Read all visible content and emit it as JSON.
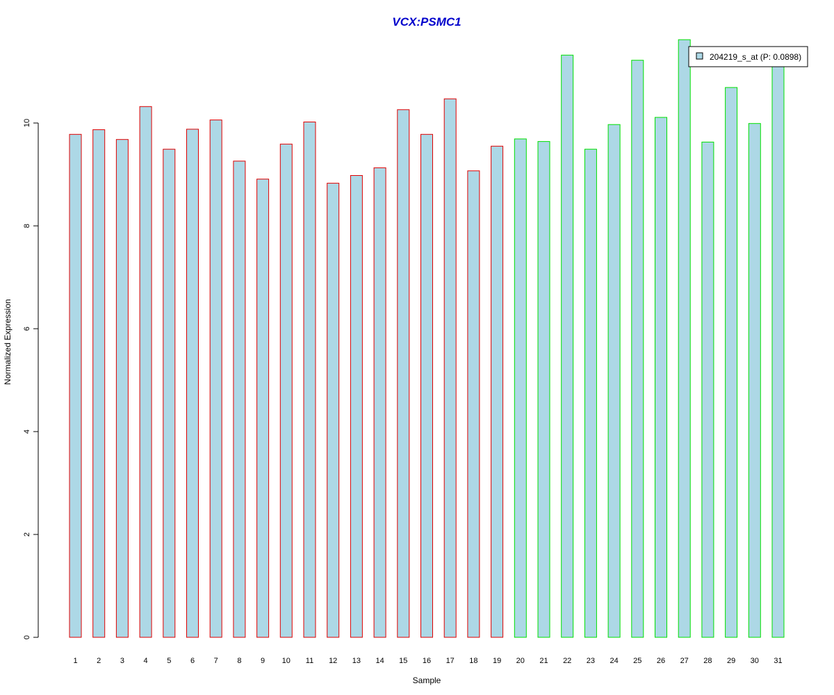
{
  "chart_data": {
    "type": "bar",
    "title": "VCX:PSMC1",
    "xlabel": "Sample",
    "ylabel": "Normalized Expression",
    "categories": [
      "1",
      "2",
      "3",
      "4",
      "5",
      "6",
      "7",
      "8",
      "9",
      "10",
      "11",
      "12",
      "13",
      "14",
      "15",
      "16",
      "17",
      "18",
      "19",
      "20",
      "21",
      "22",
      "23",
      "24",
      "25",
      "26",
      "27",
      "28",
      "29",
      "30",
      "31"
    ],
    "series": [
      {
        "name": "204219_s_at (P: 0.0898)",
        "values": [
          9.78,
          9.87,
          9.68,
          10.32,
          9.49,
          9.88,
          10.06,
          9.26,
          8.91,
          9.59,
          10.02,
          8.83,
          8.98,
          9.13,
          10.26,
          9.78,
          10.47,
          9.07,
          9.55,
          9.69,
          9.64,
          11.32,
          9.49,
          9.97,
          11.22,
          10.11,
          11.62,
          9.63,
          10.69,
          9.99,
          11.25
        ]
      }
    ],
    "groups": [
      {
        "samples": "1-19",
        "border_color": "#e00000"
      },
      {
        "samples": "20-31",
        "border_color": "#00e000"
      }
    ],
    "y_ticks": [
      "0",
      "2",
      "4",
      "6",
      "8",
      "10"
    ],
    "ylim": [
      0,
      11.62
    ],
    "grid": false,
    "legend_position": "top-right",
    "colors": {
      "bar_fill": "#add8e6",
      "title": "#0000cc",
      "axis": "#000000",
      "group_a_border": "#e00000",
      "group_b_border": "#00e000"
    }
  }
}
